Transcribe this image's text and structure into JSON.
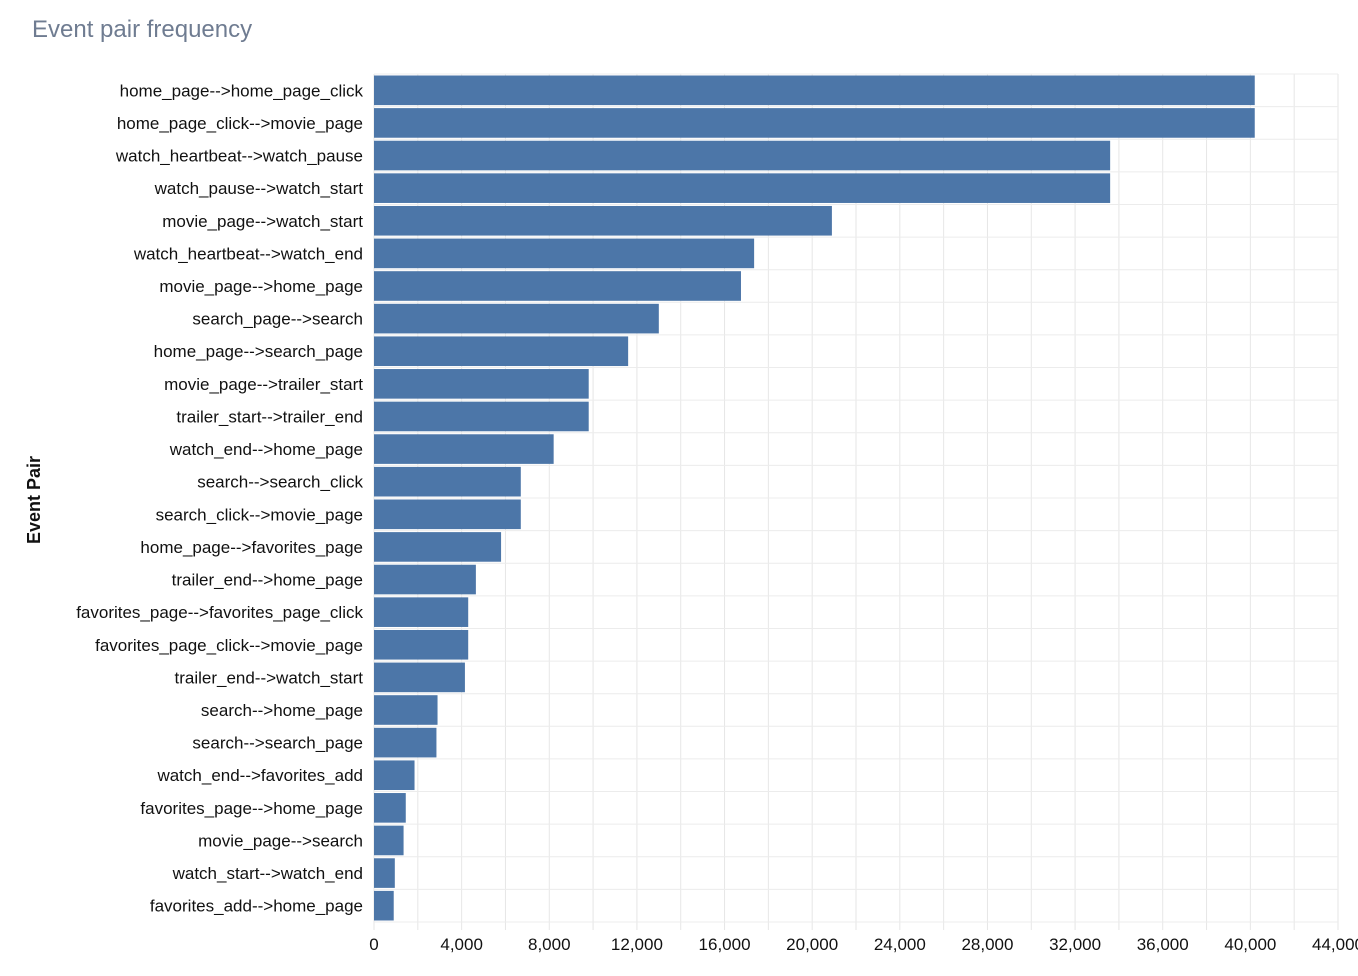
{
  "chart_data": {
    "type": "bar",
    "orientation": "horizontal",
    "title": "Event pair frequency",
    "xlabel": "",
    "ylabel": "Event Pair",
    "xlim": [
      0,
      44000
    ],
    "x_ticks": [
      0,
      4000,
      8000,
      12000,
      16000,
      20000,
      24000,
      28000,
      32000,
      36000,
      40000,
      44000
    ],
    "x_tick_labels": [
      "0",
      "4,000",
      "8,000",
      "12,000",
      "16,000",
      "20,000",
      "24,000",
      "28,000",
      "32,000",
      "36,000",
      "40,000",
      "44,000"
    ],
    "grid": true,
    "bar_color": "#4c76a8",
    "categories": [
      "home_page-->home_page_click",
      "home_page_click-->movie_page",
      "watch_heartbeat-->watch_pause",
      "watch_pause-->watch_start",
      "movie_page-->watch_start",
      "watch_heartbeat-->watch_end",
      "movie_page-->home_page",
      "search_page-->search",
      "home_page-->search_page",
      "movie_page-->trailer_start",
      "trailer_start-->trailer_end",
      "watch_end-->home_page",
      "search-->search_click",
      "search_click-->movie_page",
      "home_page-->favorites_page",
      "trailer_end-->home_page",
      "favorites_page-->favorites_page_click",
      "favorites_page_click-->movie_page",
      "trailer_end-->watch_start",
      "search-->home_page",
      "search-->search_page",
      "watch_end-->favorites_add",
      "favorites_page-->home_page",
      "movie_page-->search",
      "watch_start-->watch_end",
      "favorites_add-->home_page"
    ],
    "values": [
      40200,
      40200,
      33600,
      33600,
      20900,
      17350,
      16750,
      13000,
      11600,
      9800,
      9800,
      8200,
      6700,
      6700,
      5800,
      4650,
      4300,
      4300,
      4150,
      2900,
      2850,
      1850,
      1450,
      1350,
      950,
      900
    ]
  }
}
